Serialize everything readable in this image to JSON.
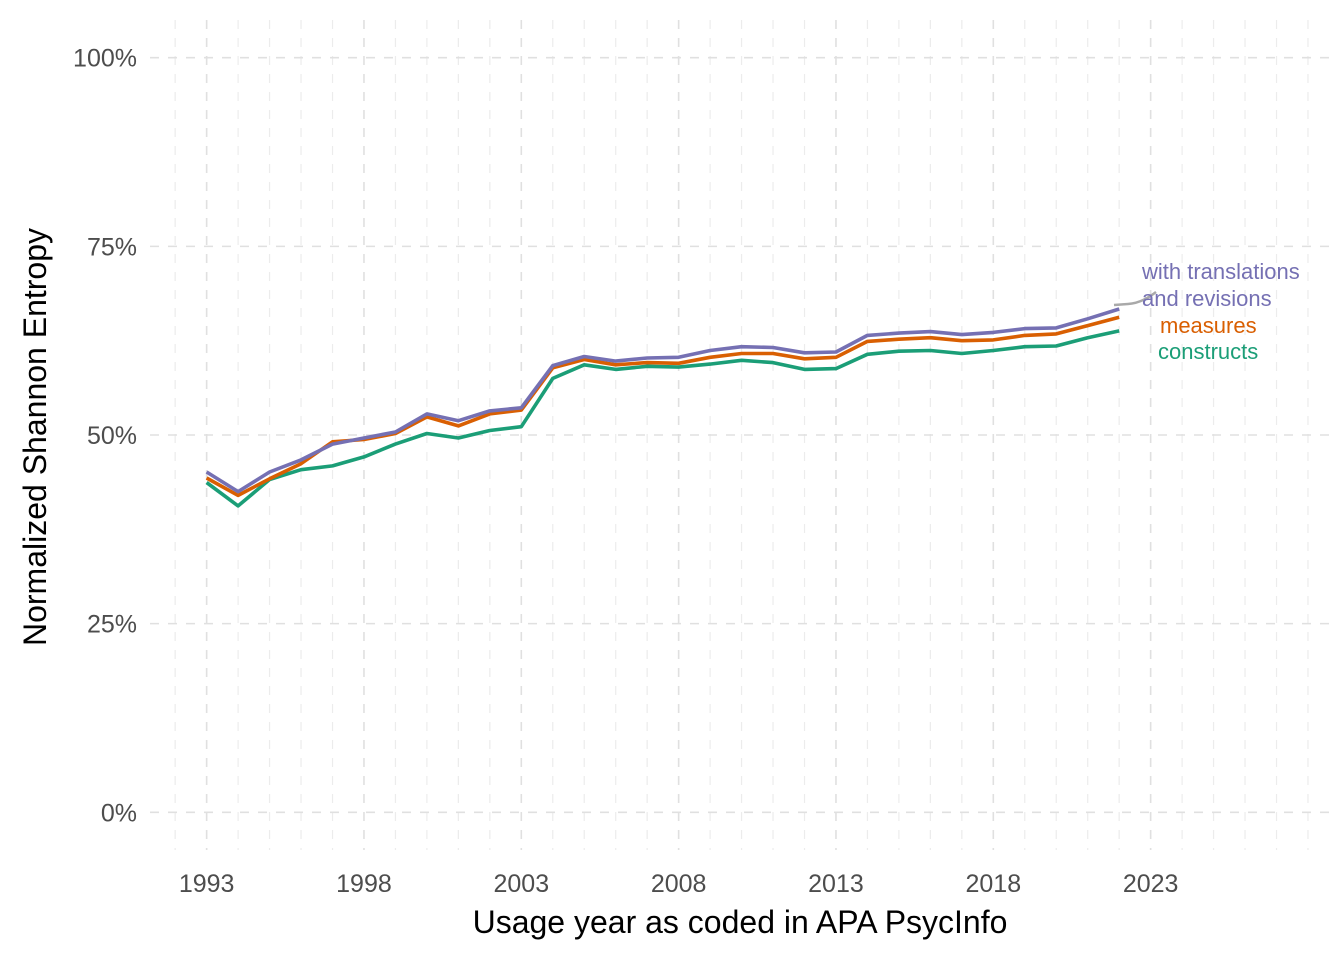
{
  "chart_data": {
    "type": "line",
    "title": "",
    "xlabel": "Usage year as coded in APA PsycInfo",
    "ylabel": "Normalized Shannon Entropy",
    "xlim": [
      1991.2,
      2028.7
    ],
    "ylim": [
      -0.05,
      1.05
    ],
    "x_ticks": [
      1993,
      1998,
      2003,
      2008,
      2013,
      2018,
      2023
    ],
    "x_tick_labels": [
      "1993",
      "1998",
      "2003",
      "2008",
      "2013",
      "2018",
      "2023"
    ],
    "y_ticks": [
      0,
      0.25,
      0.5,
      0.75,
      1.0
    ],
    "y_tick_labels": [
      "0%",
      "25%",
      "50%",
      "75%",
      "100%"
    ],
    "grid": true,
    "legend": "direct labels at right end of lines",
    "x": [
      1993,
      1994,
      1995,
      1996,
      1997,
      1998,
      1999,
      2000,
      2001,
      2002,
      2003,
      2004,
      2005,
      2006,
      2007,
      2008,
      2009,
      2010,
      2011,
      2012,
      2013,
      2014,
      2015,
      2016,
      2017,
      2018,
      2019,
      2020,
      2021,
      2022
    ],
    "series": [
      {
        "name": "constructs",
        "color": "#1b9e77",
        "values": [
          0.437,
          0.406,
          0.441,
          0.454,
          0.459,
          0.471,
          0.488,
          0.502,
          0.496,
          0.506,
          0.511,
          0.575,
          0.593,
          0.587,
          0.591,
          0.59,
          0.594,
          0.599,
          0.596,
          0.587,
          0.588,
          0.607,
          0.611,
          0.612,
          0.608,
          0.612,
          0.617,
          0.618,
          0.629,
          0.638
        ]
      },
      {
        "name": "measures",
        "color": "#d95f02",
        "values": [
          0.443,
          0.42,
          0.442,
          0.462,
          0.491,
          0.494,
          0.502,
          0.524,
          0.512,
          0.528,
          0.533,
          0.589,
          0.6,
          0.593,
          0.596,
          0.595,
          0.603,
          0.608,
          0.608,
          0.601,
          0.603,
          0.624,
          0.627,
          0.629,
          0.625,
          0.626,
          0.632,
          0.634,
          0.645,
          0.656
        ]
      },
      {
        "name": "with translations and revisions",
        "color": "#7570b3",
        "values": [
          0.451,
          0.425,
          0.451,
          0.467,
          0.488,
          0.496,
          0.504,
          0.528,
          0.519,
          0.532,
          0.536,
          0.592,
          0.604,
          0.598,
          0.602,
          0.603,
          0.612,
          0.617,
          0.616,
          0.609,
          0.61,
          0.632,
          0.635,
          0.637,
          0.633,
          0.636,
          0.641,
          0.642,
          0.654,
          0.667
        ]
      }
    ],
    "labels": {
      "translations_line1": "with translations",
      "translations_line2": "and revisions",
      "measures": "measures",
      "constructs": "constructs"
    }
  }
}
